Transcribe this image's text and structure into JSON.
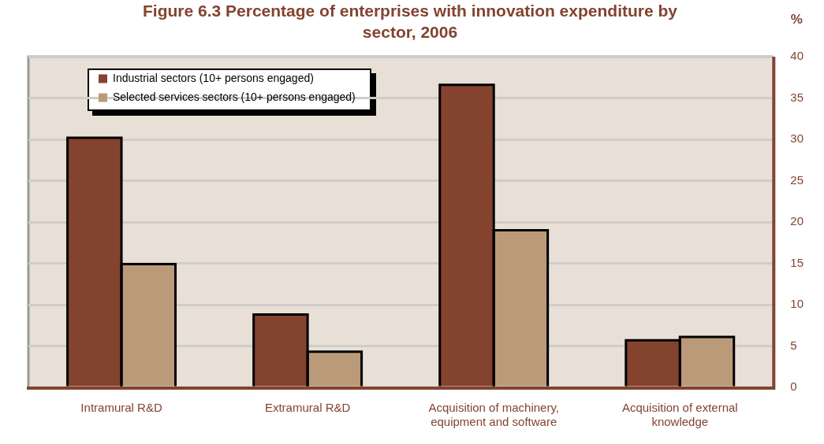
{
  "chart_data": {
    "type": "bar",
    "title": "Figure 6.3 Percentage of enterprises with innovation expenditure by sector, 2006",
    "ylabel": "%",
    "categories": [
      "Intramural R&D",
      "Extramural R&D",
      "Acquisition of machinery, equipment and software",
      "Acquisition of external knowledge"
    ],
    "series": [
      {
        "name": "Industrial sectors (10+ persons engaged)",
        "color": "#83432f",
        "values": [
          30.2,
          8.8,
          36.6,
          5.7
        ]
      },
      {
        "name": "Selected services sectors (10+ persons engaged)",
        "color": "#bb9a7a",
        "values": [
          14.9,
          4.3,
          19.0,
          6.1
        ]
      }
    ],
    "ylim": [
      0,
      40
    ],
    "yticks": [
      0,
      5,
      10,
      15,
      20,
      25,
      30,
      35,
      40
    ],
    "grid": "y",
    "legend": "top left"
  }
}
